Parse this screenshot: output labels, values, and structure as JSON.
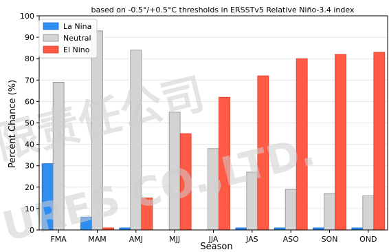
{
  "chart_data": {
    "type": "bar",
    "title": "based on -0.5°/+0.5°C thresholds in ERSSTv5 Relative Niño-3.4 index",
    "xlabel": "Season",
    "ylabel": "Percent Chance (%)",
    "ylim": [
      0,
      100
    ],
    "yticks": [
      0,
      10,
      20,
      30,
      40,
      50,
      60,
      70,
      80,
      90,
      100
    ],
    "grid": true,
    "legend_position": "top-left",
    "categories": [
      "FMA",
      "MAM",
      "AMJ",
      "MJJ",
      "JJA",
      "JAS",
      "ASO",
      "SON",
      "OND"
    ],
    "series": [
      {
        "name": "La Nina",
        "color": "#2f8ef2",
        "values": [
          31,
          6,
          1,
          0,
          0,
          1,
          1,
          1,
          1
        ]
      },
      {
        "name": "Neutral",
        "color": "#d3d3d3",
        "values": [
          69,
          93,
          84,
          55,
          38,
          27,
          19,
          17,
          16
        ]
      },
      {
        "name": "El Nino",
        "color": "#ff5a45",
        "values": [
          0,
          1,
          15,
          45,
          62,
          72,
          80,
          82,
          83
        ]
      }
    ]
  },
  "watermark": {
    "lines": [
      "限责任公司",
      "URES CO.,LTD."
    ]
  }
}
